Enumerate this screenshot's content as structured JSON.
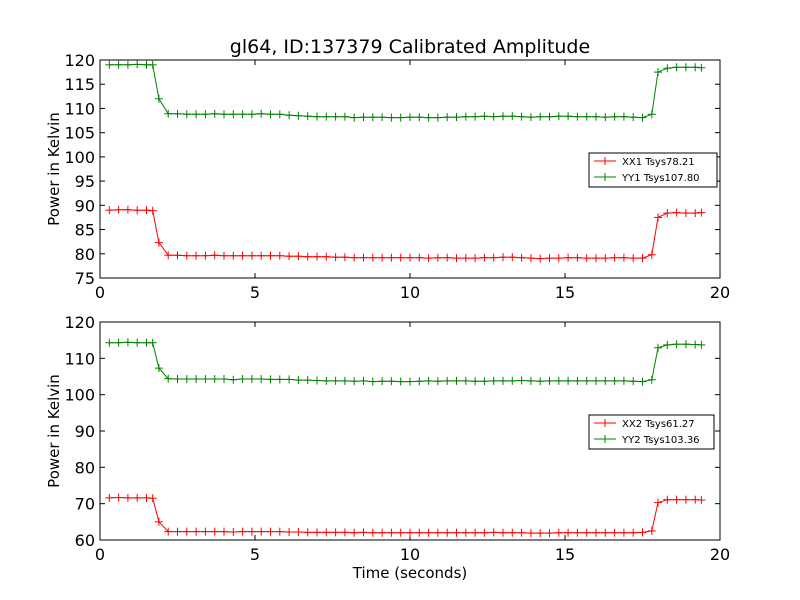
{
  "figure": {
    "title": "gl64, ID:137379 Calibrated Amplitude"
  },
  "colors": {
    "series_a": "#ff0000",
    "series_b": "#008000",
    "axes": "#000000"
  },
  "chart_data": [
    {
      "type": "line",
      "title": "gl64, ID:137379 Calibrated Amplitude",
      "xlabel": "",
      "ylabel": "Power in Kelvin",
      "xlim": [
        0,
        20
      ],
      "ylim": [
        75,
        120
      ],
      "xticks": [
        "0",
        "5",
        "10",
        "15",
        "20"
      ],
      "yticks": [
        "75",
        "80",
        "85",
        "90",
        "95",
        "100",
        "105",
        "110",
        "115",
        "120"
      ],
      "legend_position": "center-right",
      "x": [
        0.3,
        0.6,
        0.9,
        1.2,
        1.5,
        1.7,
        1.9,
        2.2,
        2.5,
        2.8,
        3.1,
        3.4,
        3.7,
        4.0,
        4.3,
        4.6,
        4.9,
        5.2,
        5.5,
        5.8,
        6.1,
        6.4,
        6.7,
        7.0,
        7.3,
        7.6,
        7.9,
        8.2,
        8.5,
        8.8,
        9.1,
        9.4,
        9.7,
        10.0,
        10.3,
        10.6,
        10.9,
        11.2,
        11.5,
        11.8,
        12.1,
        12.4,
        12.7,
        13.0,
        13.3,
        13.6,
        13.9,
        14.2,
        14.5,
        14.8,
        15.1,
        15.4,
        15.7,
        16.0,
        16.3,
        16.6,
        16.9,
        17.2,
        17.5,
        17.8,
        18.0,
        18.3,
        18.6,
        18.9,
        19.2,
        19.4
      ],
      "series": [
        {
          "name": "XX1 Tsys78.21",
          "color": "#ff0000",
          "values": [
            89.0,
            89.1,
            89.1,
            89.0,
            89.0,
            88.9,
            82.3,
            79.7,
            79.7,
            79.6,
            79.6,
            79.6,
            79.7,
            79.6,
            79.6,
            79.6,
            79.6,
            79.6,
            79.6,
            79.6,
            79.5,
            79.5,
            79.4,
            79.4,
            79.4,
            79.3,
            79.3,
            79.2,
            79.2,
            79.2,
            79.2,
            79.2,
            79.2,
            79.2,
            79.2,
            79.1,
            79.2,
            79.2,
            79.1,
            79.1,
            79.1,
            79.2,
            79.2,
            79.3,
            79.3,
            79.2,
            79.1,
            79.0,
            79.1,
            79.1,
            79.2,
            79.2,
            79.1,
            79.1,
            79.1,
            79.2,
            79.2,
            79.1,
            79.1,
            79.8,
            87.5,
            88.4,
            88.5,
            88.4,
            88.4,
            88.5
          ]
        },
        {
          "name": "YY1 Tsys107.80",
          "color": "#008000",
          "values": [
            119.0,
            119.0,
            119.0,
            119.1,
            119.0,
            119.0,
            112.0,
            108.9,
            108.9,
            108.8,
            108.8,
            108.8,
            108.9,
            108.8,
            108.8,
            108.8,
            108.8,
            108.9,
            108.8,
            108.8,
            108.6,
            108.5,
            108.4,
            108.3,
            108.3,
            108.3,
            108.3,
            108.1,
            108.2,
            108.2,
            108.2,
            108.1,
            108.1,
            108.2,
            108.2,
            108.1,
            108.1,
            108.2,
            108.2,
            108.3,
            108.3,
            108.4,
            108.3,
            108.4,
            108.4,
            108.3,
            108.2,
            108.3,
            108.3,
            108.4,
            108.4,
            108.3,
            108.3,
            108.3,
            108.2,
            108.3,
            108.3,
            108.2,
            108.1,
            108.8,
            117.5,
            118.3,
            118.5,
            118.5,
            118.5,
            118.4
          ]
        }
      ]
    },
    {
      "type": "line",
      "title": "",
      "xlabel": "Time (seconds)",
      "ylabel": "Power in Kelvin",
      "xlim": [
        0,
        20
      ],
      "ylim": [
        60,
        120
      ],
      "xticks": [
        "0",
        "5",
        "10",
        "15",
        "20"
      ],
      "yticks": [
        "60",
        "70",
        "80",
        "90",
        "100",
        "110",
        "120"
      ],
      "legend_position": "center-right",
      "x": [
        0.3,
        0.6,
        0.9,
        1.2,
        1.5,
        1.7,
        1.9,
        2.2,
        2.5,
        2.8,
        3.1,
        3.4,
        3.7,
        4.0,
        4.3,
        4.6,
        4.9,
        5.2,
        5.5,
        5.8,
        6.1,
        6.4,
        6.7,
        7.0,
        7.3,
        7.6,
        7.9,
        8.2,
        8.5,
        8.8,
        9.1,
        9.4,
        9.7,
        10.0,
        10.3,
        10.6,
        10.9,
        11.2,
        11.5,
        11.8,
        12.1,
        12.4,
        12.7,
        13.0,
        13.3,
        13.6,
        13.9,
        14.2,
        14.5,
        14.8,
        15.1,
        15.4,
        15.7,
        16.0,
        16.3,
        16.6,
        16.9,
        17.2,
        17.5,
        17.8,
        18.0,
        18.3,
        18.6,
        18.9,
        19.2,
        19.4
      ],
      "series": [
        {
          "name": "XX2 Tsys61.27",
          "color": "#ff0000",
          "values": [
            71.6,
            71.7,
            71.6,
            71.6,
            71.6,
            71.5,
            65.0,
            62.3,
            62.3,
            62.3,
            62.3,
            62.3,
            62.3,
            62.3,
            62.2,
            62.3,
            62.3,
            62.3,
            62.3,
            62.3,
            62.2,
            62.2,
            62.1,
            62.1,
            62.1,
            62.1,
            62.1,
            62.0,
            62.1,
            62.0,
            62.0,
            62.0,
            62.0,
            62.0,
            62.0,
            62.0,
            62.0,
            62.0,
            62.0,
            62.0,
            62.0,
            62.0,
            62.1,
            62.0,
            62.0,
            62.0,
            61.9,
            61.9,
            61.9,
            62.0,
            62.0,
            62.0,
            62.0,
            62.0,
            62.0,
            62.0,
            62.0,
            62.0,
            62.1,
            62.5,
            70.3,
            71.1,
            71.1,
            71.1,
            71.1,
            71.0
          ]
        },
        {
          "name": "YY2 Tsys103.36",
          "color": "#008000",
          "values": [
            114.3,
            114.3,
            114.4,
            114.3,
            114.3,
            114.3,
            107.3,
            104.4,
            104.3,
            104.3,
            104.3,
            104.3,
            104.3,
            104.3,
            104.1,
            104.3,
            104.3,
            104.3,
            104.2,
            104.2,
            104.2,
            104.0,
            104.0,
            103.9,
            103.8,
            103.8,
            103.8,
            103.7,
            103.8,
            103.6,
            103.7,
            103.7,
            103.6,
            103.6,
            103.7,
            103.8,
            103.7,
            103.8,
            103.8,
            103.8,
            103.7,
            103.7,
            103.8,
            103.8,
            103.8,
            103.9,
            103.8,
            103.7,
            103.8,
            103.8,
            103.8,
            103.8,
            103.8,
            103.8,
            103.8,
            103.8,
            103.8,
            103.7,
            103.6,
            104.1,
            112.9,
            113.7,
            113.9,
            113.9,
            113.8,
            113.7
          ]
        }
      ]
    }
  ]
}
